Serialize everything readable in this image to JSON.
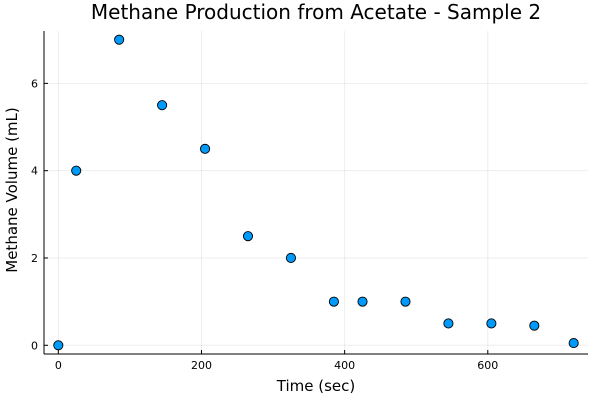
{
  "chart_data": {
    "type": "scatter",
    "title": "Methane Production from Acetate - Sample 2",
    "xlabel": "Time (sec)",
    "ylabel": "Methane Volume (mL)",
    "xlim": [
      -20,
      740
    ],
    "ylim": [
      -0.2,
      7.2
    ],
    "xticks": [
      0,
      200,
      400,
      600
    ],
    "yticks": [
      0,
      2,
      4,
      6
    ],
    "grid": true,
    "legend": false,
    "marker_color": "#009AFA",
    "marker_edge_color": "#000000",
    "points": [
      {
        "x": 0,
        "y": 0
      },
      {
        "x": 25,
        "y": 4
      },
      {
        "x": 85,
        "y": 7
      },
      {
        "x": 145,
        "y": 5.5
      },
      {
        "x": 205,
        "y": 4.5
      },
      {
        "x": 265,
        "y": 2.5
      },
      {
        "x": 325,
        "y": 2
      },
      {
        "x": 385,
        "y": 1
      },
      {
        "x": 425,
        "y": 1
      },
      {
        "x": 485,
        "y": 1
      },
      {
        "x": 545,
        "y": 0.5
      },
      {
        "x": 605,
        "y": 0.5
      },
      {
        "x": 665,
        "y": 0.45
      },
      {
        "x": 720,
        "y": 0.05
      }
    ]
  }
}
